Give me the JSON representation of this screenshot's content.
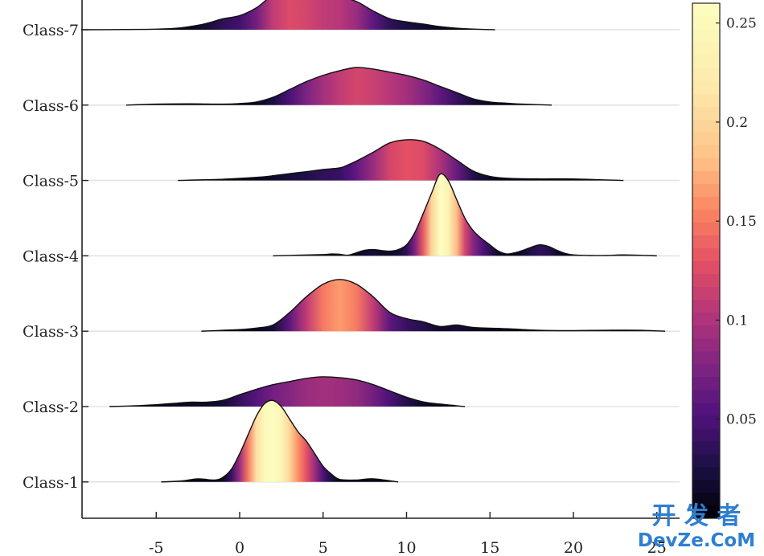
{
  "chart_data": {
    "type": "ridgeline",
    "title": "",
    "xlabel": "",
    "ylabel": "",
    "xlim": [
      -9.5,
      25.5
    ],
    "x_ticks": [
      -5,
      0,
      5,
      10,
      15,
      20,
      25
    ],
    "x_tick_labels": [
      "-5",
      "0",
      "5",
      "10",
      "15",
      "20",
      "25"
    ],
    "colorbar": {
      "colormap": "magma",
      "range": [
        0,
        0.26
      ],
      "ticks": [
        0.05,
        0.1,
        0.15,
        0.2,
        0.25
      ],
      "tick_labels": [
        "0.05",
        "0.1",
        "0.15",
        "0.2",
        "0.25"
      ]
    },
    "series": [
      {
        "name": "Class-1",
        "x": [
          -4.7,
          -3.5,
          -2.5,
          -1.5,
          -1,
          -0.5,
          0,
          0.5,
          1,
          1.5,
          2,
          2.5,
          3,
          3.5,
          4,
          4.5,
          5,
          5.5,
          6,
          7,
          8,
          9.5
        ],
        "density": [
          0.0,
          0.003,
          0.01,
          0.006,
          0.015,
          0.04,
          0.09,
          0.15,
          0.21,
          0.25,
          0.26,
          0.24,
          0.2,
          0.16,
          0.13,
          0.09,
          0.05,
          0.025,
          0.008,
          0.006,
          0.01,
          0.0
        ]
      },
      {
        "name": "Class-2",
        "x": [
          -7.8,
          -6,
          -5,
          -4,
          -3,
          -2,
          -1,
          0,
          1,
          2,
          3,
          4,
          5,
          6,
          7,
          8,
          9,
          10,
          11,
          12,
          13.5
        ],
        "density": [
          0.0,
          0.003,
          0.006,
          0.01,
          0.014,
          0.014,
          0.02,
          0.038,
          0.055,
          0.07,
          0.08,
          0.09,
          0.095,
          0.092,
          0.085,
          0.07,
          0.05,
          0.03,
          0.015,
          0.008,
          0.0
        ]
      },
      {
        "name": "Class-3",
        "x": [
          -2.3,
          -1,
          0,
          1,
          2,
          3,
          4,
          5,
          6,
          7,
          8,
          9,
          10,
          11,
          12,
          13,
          14,
          16,
          18,
          20,
          22,
          24,
          25.5
        ],
        "density": [
          0.0,
          0.003,
          0.005,
          0.01,
          0.02,
          0.06,
          0.11,
          0.15,
          0.165,
          0.15,
          0.11,
          0.06,
          0.04,
          0.03,
          0.015,
          0.02,
          0.012,
          0.008,
          0.003,
          0.002,
          0.003,
          0.003,
          0.0
        ]
      },
      {
        "name": "Class-4",
        "x": [
          2,
          3.5,
          5,
          5.5,
          6,
          6.5,
          7,
          7.5,
          8,
          8.5,
          9,
          9.5,
          10,
          10.5,
          11,
          11.5,
          12,
          12.5,
          13,
          13.5,
          14,
          14.5,
          15,
          15.5,
          16,
          16.5,
          17,
          17.5,
          18,
          18.5,
          19,
          19.5,
          20,
          21,
          22,
          23,
          25
        ],
        "density": [
          0.0,
          0.002,
          0.004,
          0.006,
          0.005,
          0.002,
          0.01,
          0.018,
          0.02,
          0.017,
          0.015,
          0.02,
          0.035,
          0.075,
          0.135,
          0.2,
          0.26,
          0.24,
          0.18,
          0.12,
          0.08,
          0.055,
          0.035,
          0.015,
          0.006,
          0.01,
          0.018,
          0.028,
          0.035,
          0.03,
          0.018,
          0.008,
          0.003,
          0.001,
          0.001,
          0.003,
          0.0
        ]
      },
      {
        "name": "Class-5",
        "x": [
          -3.7,
          -1,
          1,
          2,
          3,
          4,
          5,
          6,
          6.5,
          7,
          8,
          9,
          10,
          11,
          12,
          13,
          14,
          15,
          16,
          18,
          20,
          23
        ],
        "density": [
          0.0,
          0.004,
          0.01,
          0.015,
          0.022,
          0.028,
          0.035,
          0.04,
          0.05,
          0.062,
          0.09,
          0.12,
          0.13,
          0.125,
          0.1,
          0.065,
          0.03,
          0.013,
          0.007,
          0.005,
          0.005,
          0.0
        ]
      },
      {
        "name": "Class-6",
        "x": [
          -6.8,
          -5,
          -3,
          -1,
          0,
          1,
          2,
          3,
          4,
          5,
          6,
          7,
          8,
          9,
          10,
          11,
          12,
          13,
          14,
          15,
          16,
          17,
          18.7
        ],
        "density": [
          0.0,
          0.003,
          0.004,
          0.003,
          0.005,
          0.01,
          0.025,
          0.05,
          0.075,
          0.095,
          0.11,
          0.12,
          0.115,
          0.105,
          0.095,
          0.08,
          0.06,
          0.04,
          0.02,
          0.01,
          0.006,
          0.003,
          0.0
        ]
      },
      {
        "name": "Class-7",
        "x": [
          -9.5,
          -6,
          -4,
          -3,
          -2,
          -1,
          0,
          1,
          2,
          3,
          4,
          5,
          6,
          7,
          8,
          9,
          10,
          11,
          12,
          13,
          14,
          15.3
        ],
        "density": [
          0.0,
          0.001,
          0.004,
          0.01,
          0.02,
          0.035,
          0.045,
          0.07,
          0.11,
          0.125,
          0.12,
          0.11,
          0.105,
          0.09,
          0.06,
          0.035,
          0.025,
          0.018,
          0.01,
          0.005,
          0.002,
          0.0
        ]
      }
    ]
  },
  "watermark": {
    "line1": "开 发 者",
    "line2": "DevZe.CoM",
    "color": "#2f7fd0"
  }
}
